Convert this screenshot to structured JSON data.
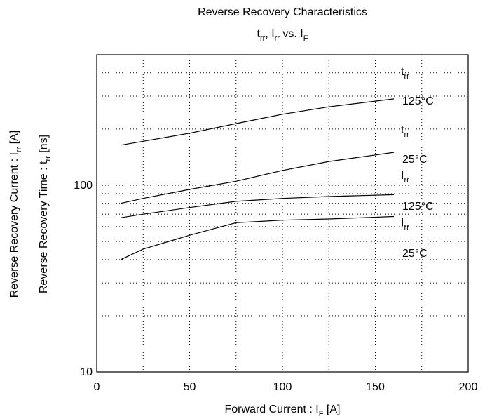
{
  "chart_data": {
    "type": "line",
    "title": "Reverse Recovery Characteristics",
    "subtitle_parts": [
      "t",
      "rr",
      ", I",
      "rr",
      " vs. I",
      "F"
    ],
    "xlabel_parts": [
      "Forward Current : I",
      "F",
      " [A]"
    ],
    "ylabel_parts": [
      [
        "Reverse Recovery Current : I",
        "rr",
        " [A]"
      ],
      [
        "Reverse Recovery Time : t",
        "rr",
        " [ns]"
      ]
    ],
    "x": [
      13,
      25,
      50,
      75,
      100,
      125,
      160
    ],
    "series": [
      {
        "label_parts": [
          "t",
          "rr"
        ],
        "condition": "125°C",
        "color": "#000000",
        "values": [
          164,
          172,
          190,
          214,
          240,
          263,
          290
        ]
      },
      {
        "label_parts": [
          "t",
          "rr"
        ],
        "condition": "25°C",
        "color": "#000000",
        "values": [
          80,
          85,
          95,
          105,
          120,
          134,
          150
        ]
      },
      {
        "label_parts": [
          "I",
          "rr"
        ],
        "condition": "125°C",
        "color": "#000000",
        "values": [
          67,
          70,
          76,
          82,
          85,
          87,
          89
        ]
      },
      {
        "label_parts": [
          "I",
          "rr"
        ],
        "condition": "25°C",
        "color": "#000000",
        "values": [
          40,
          45.5,
          54,
          63,
          65,
          66,
          68
        ]
      }
    ],
    "xlim": [
      0,
      200
    ],
    "xticks": [
      0,
      50,
      100,
      150,
      200
    ],
    "xminor": [
      25,
      75,
      125,
      175
    ],
    "ylim": [
      10,
      500
    ],
    "yticks": [
      10,
      100
    ],
    "yminor": [
      20,
      30,
      40,
      50,
      60,
      70,
      80,
      90,
      200,
      300,
      400
    ],
    "log_y": true,
    "grid": true
  }
}
